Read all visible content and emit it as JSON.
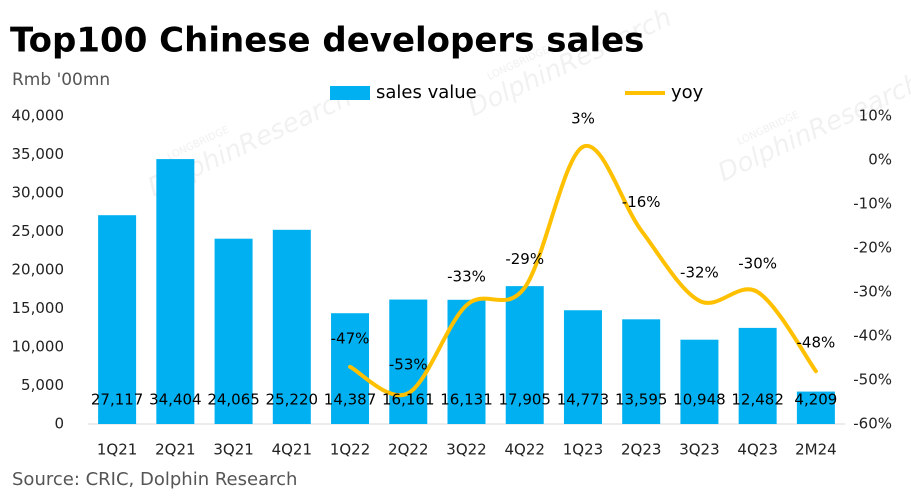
{
  "chart_data": {
    "type": "bar-line",
    "title": "Top100 Chinese developers sales",
    "y_unit": "Rmb '00mn",
    "source": "Source: CRIC, Dolphin Research",
    "watermark": [
      "LONGBRIDGE",
      "DolphinResearch"
    ],
    "categories": [
      "1Q21",
      "2Q21",
      "3Q21",
      "4Q21",
      "1Q22",
      "2Q22",
      "3Q22",
      "4Q22",
      "1Q23",
      "2Q23",
      "3Q23",
      "4Q23",
      "2M24"
    ],
    "series": [
      {
        "name": "sales value",
        "type": "bar",
        "color": "#00B0F0",
        "values": [
          27117,
          34404,
          24065,
          25220,
          14387,
          16161,
          16131,
          17905,
          14773,
          13595,
          10948,
          12482,
          4209
        ],
        "value_labels": [
          "27,117",
          "34,404",
          "24,065",
          "25,220",
          "14,387",
          "16,161",
          "16,131",
          "17,905",
          "14,773",
          "13,595",
          "10,948",
          "12,482",
          "4,209"
        ]
      },
      {
        "name": "yoy",
        "type": "line",
        "axis": "y2",
        "color": "#FFC000",
        "values": [
          null,
          null,
          null,
          null,
          -47,
          -53,
          -33,
          -29,
          3,
          -16,
          -32,
          -30,
          -48
        ],
        "value_labels": [
          null,
          null,
          null,
          null,
          "-47%",
          "-53%",
          "-33%",
          "-29%",
          "3%",
          "-16%",
          "-32%",
          "-30%",
          "-48%"
        ]
      }
    ],
    "ylim": [
      0,
      40000
    ],
    "yticks": [
      0,
      {
        "value": 5000,
        "label": "5,000"
      },
      {
        "value": 10000,
        "label": "10,000"
      },
      {
        "value": 15000,
        "label": "15,000"
      },
      {
        "value": 20000,
        "label": "20,000"
      },
      {
        "value": 25000,
        "label": "25,000"
      },
      {
        "value": 30000,
        "label": "30,000"
      },
      {
        "value": 35000,
        "label": "35,000"
      },
      {
        "value": 40000,
        "label": "40,000"
      }
    ],
    "y2lim": [
      -60,
      10
    ],
    "y2ticks": [
      {
        "value": -60,
        "label": "-60%"
      },
      {
        "value": -50,
        "label": "-50%"
      },
      {
        "value": -40,
        "label": "-40%"
      },
      {
        "value": -30,
        "label": "-30%"
      },
      {
        "value": -20,
        "label": "-20%"
      },
      {
        "value": -10,
        "label": "-10%"
      },
      {
        "value": 0,
        "label": "0%"
      },
      {
        "value": 10,
        "label": "10%"
      }
    ],
    "legend": "top",
    "grid": false
  }
}
